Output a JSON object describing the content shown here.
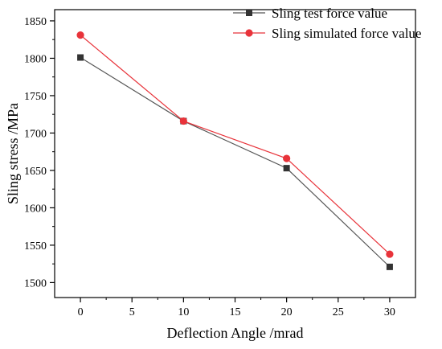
{
  "chart_data": {
    "type": "line",
    "title": "",
    "xlabel": "Deflection Angle /mrad",
    "ylabel": "Sling stress /MPa",
    "xlim": [
      -2.5,
      32.5
    ],
    "ylim": [
      1480,
      1865
    ],
    "x_ticks": [
      0,
      5,
      10,
      15,
      20,
      25,
      30
    ],
    "y_ticks": [
      1500,
      1550,
      1600,
      1650,
      1700,
      1750,
      1800,
      1850
    ],
    "grid": false,
    "legend_position": "top-right",
    "series": [
      {
        "name": "Sling test force value",
        "marker": "square",
        "line_color": "#555555",
        "marker_color": "#333333",
        "x": [
          0,
          10,
          20,
          30
        ],
        "y": [
          1801,
          1716,
          1653,
          1521
        ]
      },
      {
        "name": "Sling simulated force value",
        "marker": "circle",
        "line_color": "#e8333a",
        "marker_color": "#e8333a",
        "x": [
          0,
          10,
          20,
          30
        ],
        "y": [
          1831,
          1716,
          1666,
          1538
        ]
      }
    ]
  }
}
